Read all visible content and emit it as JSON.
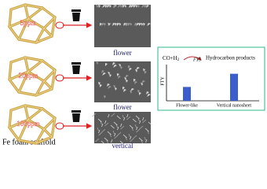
{
  "rows": [
    {
      "concentration": "5ppm",
      "morphology": "flower"
    },
    {
      "concentration": "20ppm",
      "morphology": "flower"
    },
    {
      "concentration": "100ppm",
      "morphology": "vertical"
    }
  ],
  "scaffold_label": "Fe foam scaffold",
  "chart": {
    "reaction": {
      "reactants": "CO+H",
      "subscript": "2",
      "process": "FTS",
      "products": "Hydrocarbon products"
    },
    "y_label": "FTY",
    "categories": [
      "Flower-like",
      "Vertical nanosheet"
    ],
    "values": [
      0.4,
      0.78
    ],
    "ylim": [
      0,
      1
    ],
    "color": "#3a5fcd"
  }
}
